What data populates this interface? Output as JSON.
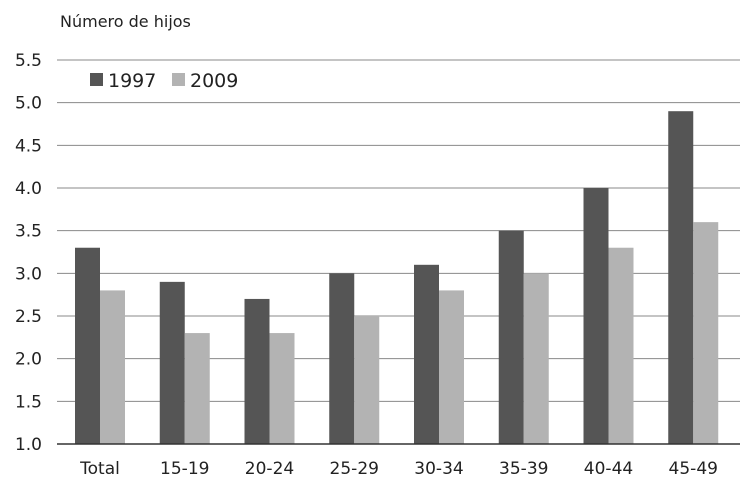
{
  "chart_data": {
    "type": "bar",
    "ylabel": "Número de hijos",
    "xlabel": "",
    "categories": [
      "Total",
      "15-19",
      "20-24",
      "25-29",
      "30-34",
      "35-39",
      "40-44",
      "45-49"
    ],
    "series": [
      {
        "name": "1997",
        "color": "#555555",
        "values": [
          3.3,
          2.9,
          2.7,
          3.0,
          3.1,
          3.5,
          4.0,
          4.9
        ]
      },
      {
        "name": "2009",
        "color": "#b3b3b3",
        "values": [
          2.8,
          2.3,
          2.3,
          2.5,
          2.8,
          3.0,
          3.3,
          3.6
        ]
      }
    ],
    "ylim": [
      1.0,
      5.5
    ],
    "yticks": [
      "1.0",
      "1.5",
      "2.0",
      "2.5",
      "3.0",
      "3.5",
      "4.0",
      "4.5",
      "5.0",
      "5.5"
    ],
    "grid": true,
    "legend_position": "top-left"
  }
}
